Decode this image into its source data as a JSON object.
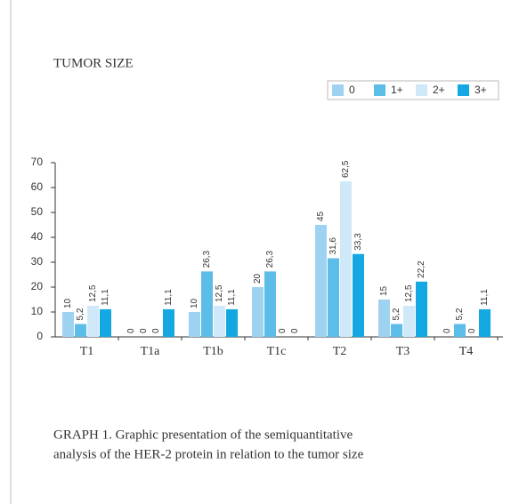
{
  "chart_data": {
    "type": "bar",
    "title": "TUMOR SIZE",
    "caption": [
      "GRAPH 1. Graphic presentation of the semiquantitative",
      "analysis of the HER-2 protein in relation to the tumor size"
    ],
    "categories": [
      "T1",
      "T1a",
      "T1b",
      "T1c",
      "T2",
      "T3",
      "T4"
    ],
    "series": [
      {
        "name": "0",
        "color": "#9dd3f1",
        "values": [
          10,
          0,
          10,
          20,
          45,
          15,
          0
        ],
        "value_labels": [
          "10",
          "0",
          "10",
          "20",
          "45",
          "15",
          "0"
        ]
      },
      {
        "name": "1+",
        "color": "#5cbde9",
        "values": [
          5.2,
          0,
          26.3,
          26.3,
          31.6,
          5.2,
          5.2
        ],
        "value_labels": [
          "5,2",
          "0",
          "26,3",
          "26,3",
          "31,6",
          "5,2",
          "5,2"
        ]
      },
      {
        "name": "2+",
        "color": "#cfe9f8",
        "values": [
          12.5,
          0,
          12.5,
          0,
          62.5,
          12.5,
          0
        ],
        "value_labels": [
          "12,5",
          "0",
          "12,5",
          "0",
          "62,5",
          "12,5",
          "0"
        ]
      },
      {
        "name": "3+",
        "color": "#14a8e2",
        "values": [
          11.1,
          11.1,
          11.1,
          0,
          33.3,
          22.2,
          11.1
        ],
        "value_labels": [
          "11,1",
          "11,1",
          "11,1",
          "0",
          "33,3",
          "22,2",
          "11,1"
        ]
      }
    ],
    "ylim": [
      0,
      70
    ],
    "yticks": [
      0,
      10,
      20,
      30,
      40,
      50,
      60,
      70
    ],
    "legend": "top-right"
  }
}
